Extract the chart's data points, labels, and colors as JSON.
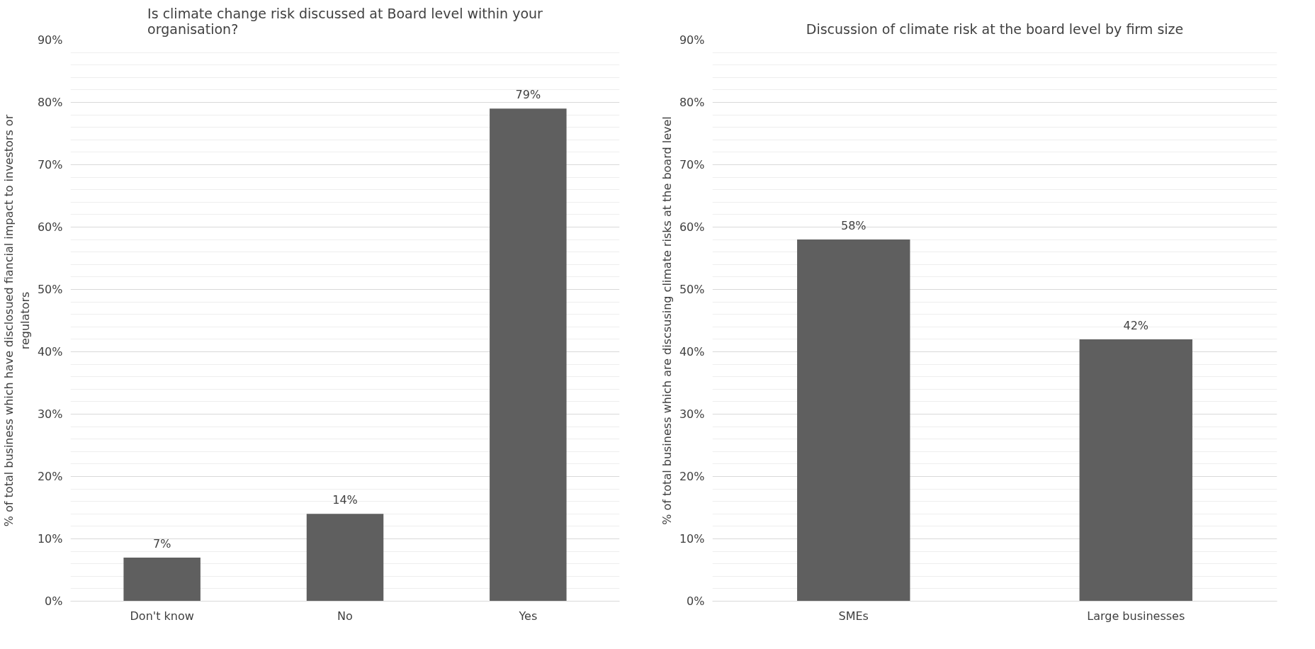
{
  "chart_data": [
    {
      "type": "bar",
      "title": "Is climate change risk discussed at Board level within your organisation?",
      "ylabel": "% of total business which have disclosued fiancial impact to investors or regulators",
      "categories": [
        "Don't know",
        "No",
        "Yes"
      ],
      "values": [
        7,
        14,
        79
      ],
      "value_labels": [
        "7%",
        "14%",
        "79%"
      ],
      "color": "#5f5f5f",
      "ylim": [
        0,
        90
      ],
      "yticks": [
        {
          "value": 0,
          "label": "0%"
        },
        {
          "value": 10,
          "label": "10%"
        },
        {
          "value": 20,
          "label": "20%"
        },
        {
          "value": 30,
          "label": "30%"
        },
        {
          "value": 40,
          "label": "40%"
        },
        {
          "value": 50,
          "label": "50%"
        },
        {
          "value": 60,
          "label": "60%"
        },
        {
          "value": 70,
          "label": "70%"
        },
        {
          "value": 80,
          "label": "80%"
        },
        {
          "value": 90,
          "label": "90%"
        }
      ],
      "grid": "y"
    },
    {
      "type": "bar",
      "title": "Discussion of climate risk at the board level by firm size",
      "ylabel": "% of total business which are discsusing climate risks at the board level",
      "categories": [
        "SMEs",
        "Large businesses"
      ],
      "values": [
        58,
        42
      ],
      "value_labels": [
        "58%",
        "42%"
      ],
      "color": "#5f5f5f",
      "ylim": [
        0,
        90
      ],
      "yticks": [
        {
          "value": 0,
          "label": "0%"
        },
        {
          "value": 10,
          "label": "10%"
        },
        {
          "value": 20,
          "label": "20%"
        },
        {
          "value": 30,
          "label": "30%"
        },
        {
          "value": 40,
          "label": "40%"
        },
        {
          "value": 50,
          "label": "50%"
        },
        {
          "value": 60,
          "label": "60%"
        },
        {
          "value": 70,
          "label": "70%"
        },
        {
          "value": 80,
          "label": "80%"
        },
        {
          "value": 90,
          "label": "90%"
        }
      ],
      "grid": "y"
    }
  ]
}
